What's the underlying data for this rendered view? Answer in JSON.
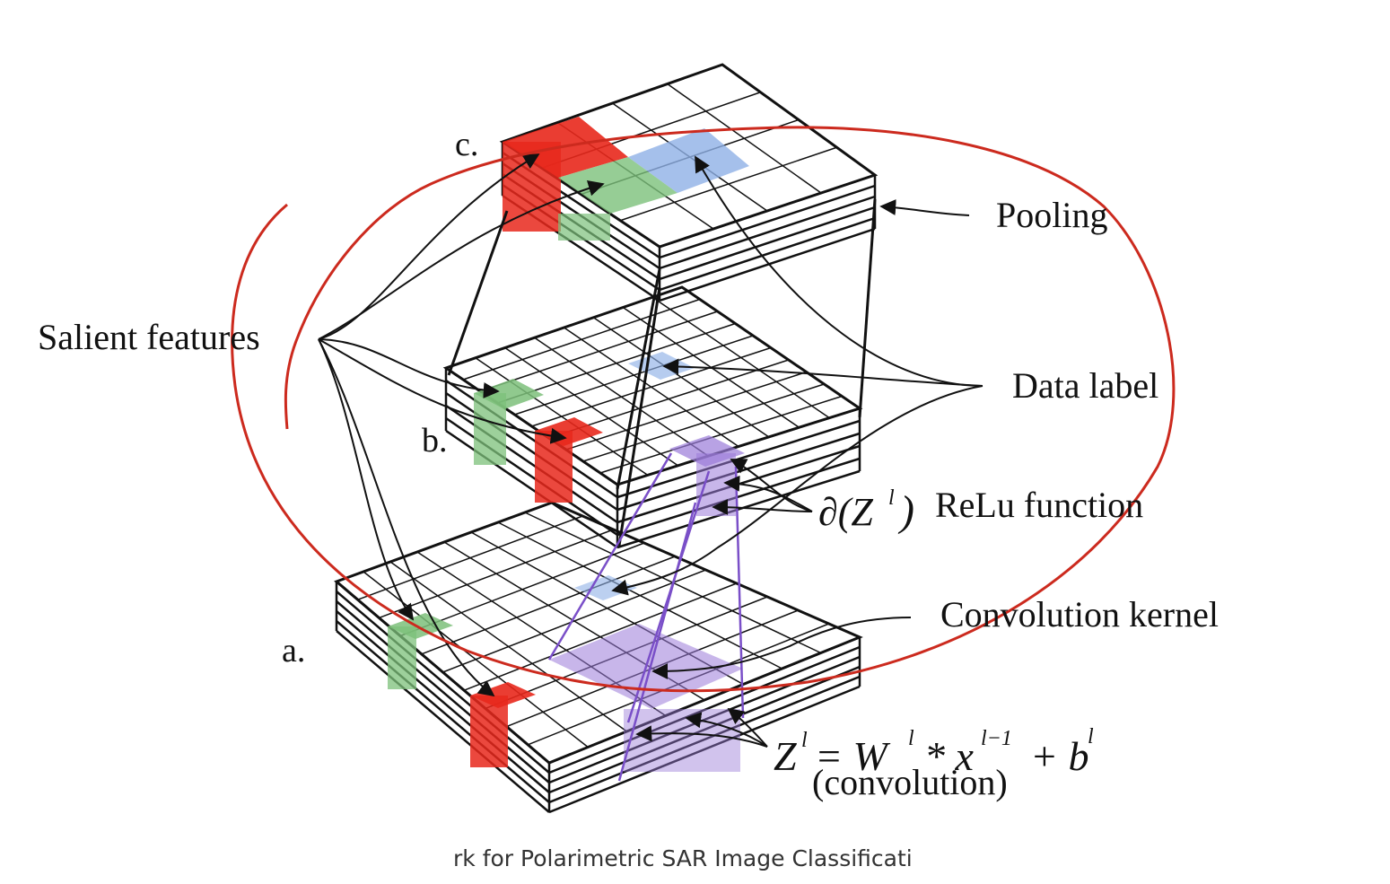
{
  "labels": {
    "layer_a": "a.",
    "layer_b": "b.",
    "layer_c": "c.",
    "pooling": "Pooling",
    "salient_features": "Salient features",
    "data_label": "Data label",
    "relu": "ReLu function",
    "convolution_kernel": "Convolution kernel",
    "convolution": "(convolution)"
  },
  "formulas": {
    "relu_arg": "∂(Z",
    "relu_sup": "l",
    "relu_close": ")",
    "conv_Z": "Z",
    "conv_sup_l": "l",
    "conv_eq": "= W",
    "conv_sup_l2": "l",
    "conv_star": "* x",
    "conv_sup_l1": "l−1",
    "conv_plus": "+ b",
    "conv_sup_l3": "l"
  },
  "caption": "rk for Polarimetric SAR Image Classificati",
  "colors": {
    "red_patch": "#e8281c",
    "green_patch": "#7cc07a",
    "blue_patch": "#8fb0e6",
    "purple_patch": "#9a7ad8",
    "purple_line": "#7a4fc8",
    "annotation_ring": "#cc2a1e",
    "grid_line": "#111111"
  }
}
